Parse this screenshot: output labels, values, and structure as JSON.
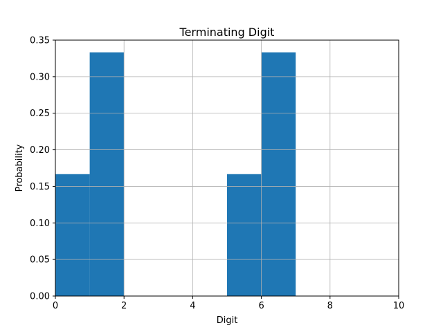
{
  "chart_data": {
    "type": "bar",
    "title": "Terminating Digit",
    "xlabel": "Digit",
    "ylabel": "Probability",
    "xlim": [
      0,
      10
    ],
    "ylim": [
      0,
      0.35
    ],
    "xticks": [
      0,
      2,
      4,
      6,
      8,
      10
    ],
    "xtick_labels": [
      "0",
      "2",
      "4",
      "6",
      "8",
      "10"
    ],
    "yticks": [
      0,
      0.05,
      0.1,
      0.15,
      0.2,
      0.25,
      0.3,
      0.35
    ],
    "ytick_labels": [
      "0.00",
      "0.05",
      "0.10",
      "0.15",
      "0.20",
      "0.25",
      "0.30",
      "0.35"
    ],
    "grid": true,
    "bar_color": "#1f77b4",
    "bins": [
      {
        "x0": 0,
        "x1": 1,
        "value": 0.1667
      },
      {
        "x0": 1,
        "x1": 2,
        "value": 0.3333
      },
      {
        "x0": 5,
        "x1": 6,
        "value": 0.1667
      },
      {
        "x0": 6,
        "x1": 7,
        "value": 0.3333
      }
    ]
  }
}
